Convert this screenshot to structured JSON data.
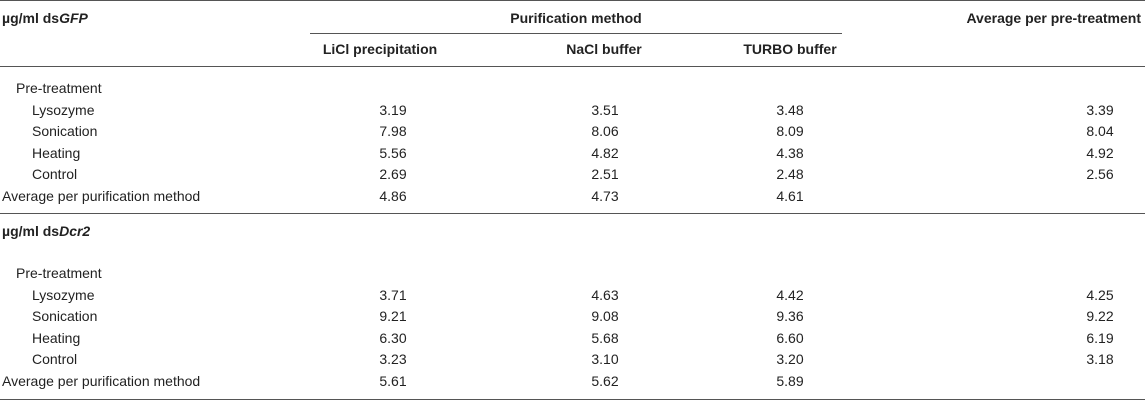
{
  "header": {
    "group": "Purification method",
    "columns": [
      "LiCl precipitation",
      "NaCl buffer",
      "TURBO buffer"
    ],
    "last_col": "Average per pre-treatment"
  },
  "sections": [
    {
      "title": {
        "prefix": "µg/ml ds",
        "italic": "GFP"
      },
      "group_label": "Pre-treatment",
      "rows": [
        {
          "label": "Lysozyme",
          "values": [
            "3.19",
            "3.51",
            "3.48",
            "3.39"
          ]
        },
        {
          "label": "Sonication",
          "values": [
            "7.98",
            "8.06",
            "8.09",
            "8.04"
          ]
        },
        {
          "label": "Heating",
          "values": [
            "5.56",
            "4.82",
            "4.38",
            "4.92"
          ]
        },
        {
          "label": "Control",
          "values": [
            "2.69",
            "2.51",
            "2.48",
            "2.56"
          ]
        }
      ],
      "average": {
        "label": "Average per purification method",
        "values": [
          "4.86",
          "4.73",
          "4.61"
        ]
      }
    },
    {
      "title": {
        "prefix": "µg/ml ds",
        "italic": "Dcr2"
      },
      "group_label": "Pre-treatment",
      "rows": [
        {
          "label": "Lysozyme",
          "values": [
            "3.71",
            "4.63",
            "4.42",
            "4.25"
          ]
        },
        {
          "label": "Sonication",
          "values": [
            "9.21",
            "9.08",
            "9.36",
            "9.22"
          ]
        },
        {
          "label": "Heating",
          "values": [
            "6.30",
            "5.68",
            "6.60",
            "6.19"
          ]
        },
        {
          "label": "Control",
          "values": [
            "3.23",
            "3.10",
            "3.20",
            "3.18"
          ]
        }
      ],
      "average": {
        "label": "Average per purification method",
        "values": [
          "5.61",
          "5.62",
          "5.89"
        ]
      }
    }
  ]
}
